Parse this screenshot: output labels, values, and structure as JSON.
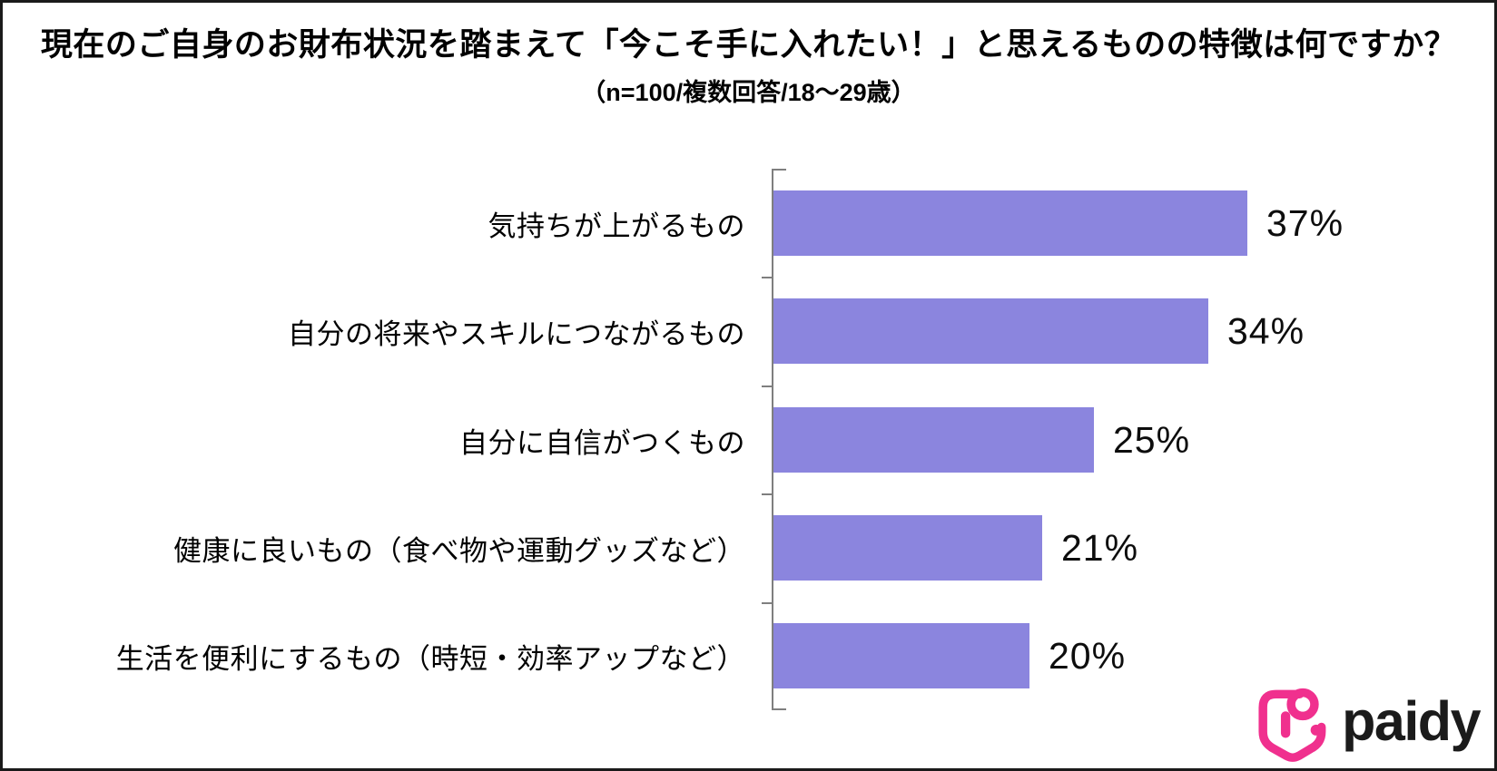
{
  "chart_data": {
    "type": "bar",
    "orientation": "horizontal",
    "title": "現在のご自身のお財布状況を踏まえて「今こそ手に入れたい！」と思えるものの特徴は何ですか？",
    "subtitle": "（n=100/複数回答/18～29歳）",
    "categories": [
      "気持ちが上がるもの",
      "自分の将来やスキルにつながるもの",
      "自分に自信がつくもの",
      "健康に良いもの（食べ物や運動グッズなど）",
      "生活を便利にするもの（時短・効率アップなど）"
    ],
    "values": [
      37,
      34,
      25,
      21,
      20
    ],
    "value_labels": [
      "37%",
      "34%",
      "25%",
      "21%",
      "20%"
    ],
    "value_axis": "hidden",
    "grid": false,
    "legend": "none",
    "bar_color": "#8B85DE",
    "axis_color": "#7f7f7f",
    "value_label_position": "right-of-bar"
  },
  "logo": {
    "text": "paidy",
    "icon": "paidy-heart-swirl-icon",
    "icon_color": "#F0308E",
    "text_color": "#1b1b1b"
  }
}
